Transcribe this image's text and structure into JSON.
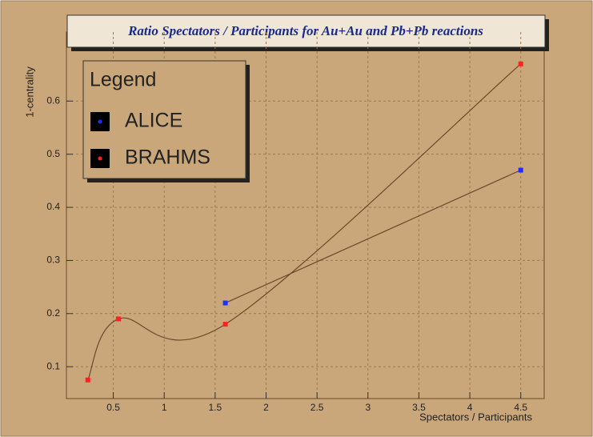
{
  "chart_data": {
    "type": "scatter",
    "title": "Ratio Spectators / Participants for Au+Au and Pb+Pb reactions",
    "x_label": "Spectators / Participants",
    "y_label": "1-centrality",
    "legend_title": "Legend",
    "series": [
      {
        "name": "ALICE",
        "color": "#1f2fff",
        "x": [
          1.6,
          4.5
        ],
        "values": [
          0.22,
          0.47
        ]
      },
      {
        "name": "BRAHMS",
        "color": "#ff2020",
        "x": [
          0.25,
          0.55,
          1.6,
          4.5
        ],
        "values": [
          0.075,
          0.19,
          0.18,
          0.67
        ]
      }
    ],
    "xlim": [
      0.04,
      4.73
    ],
    "xticks": [
      0.5,
      1,
      1.5,
      2,
      2.5,
      3,
      3.5,
      4,
      4.5
    ],
    "ylim": [
      0.04,
      0.73
    ],
    "yticks": [
      0.1,
      0.2,
      0.3,
      0.4,
      0.5,
      0.6
    ],
    "grid": true,
    "legend_position": "upper-left"
  }
}
